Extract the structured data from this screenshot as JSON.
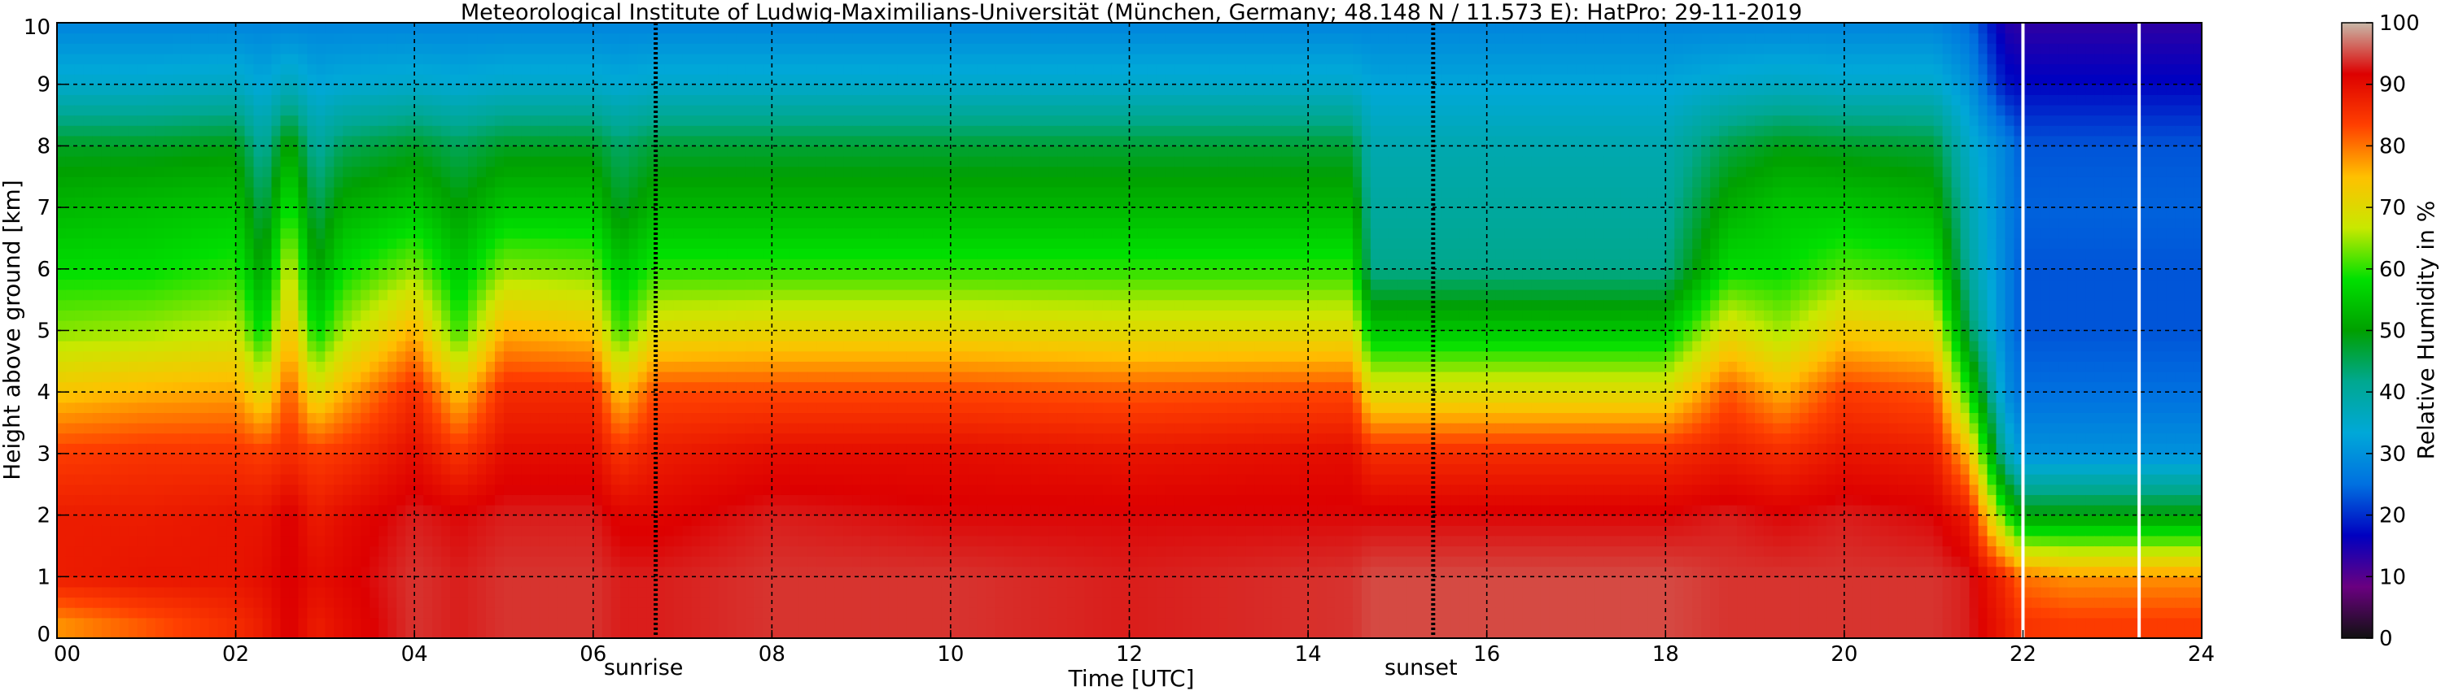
{
  "chart_data": {
    "type": "heatmap",
    "title": "Meteorological Institute of Ludwig-Maximilians-Universität (München, Germany; 48.148 N / 11.573 E):    HatPro: 29-11-2019",
    "xlabel": "Time [UTC]",
    "ylabel": "Height above ground [km]",
    "xlim": [
      0,
      24
    ],
    "ylim": [
      0,
      10
    ],
    "x_ticks": [
      "00",
      "02",
      "04",
      "06",
      "08",
      "10",
      "12",
      "14",
      "16",
      "18",
      "20",
      "22",
      "24"
    ],
    "y_ticks": [
      "0",
      "1",
      "2",
      "3",
      "4",
      "5",
      "6",
      "7",
      "8",
      "9",
      "10"
    ],
    "grid": true,
    "colorbar": {
      "label": "Relative Humidity in %",
      "range": [
        0,
        100
      ],
      "ticks": [
        "0",
        "10",
        "20",
        "30",
        "40",
        "50",
        "60",
        "70",
        "80",
        "90",
        "100"
      ],
      "colors": [
        "#111111",
        "#6a0080",
        "#0000c0",
        "#0070e0",
        "#00a8d8",
        "#00a890",
        "#00a000",
        "#00e000",
        "#c8e800",
        "#ffc000",
        "#ff4000",
        "#dd0000",
        "#c8b8a8"
      ]
    },
    "annotations": [
      {
        "text": "sunrise",
        "x": 6.7
      },
      {
        "text": "sunset",
        "x": 15.4
      }
    ],
    "rain_flags": [
      22.0,
      23.3
    ],
    "time_hours": [
      0,
      1,
      2,
      2.3,
      2.6,
      2.9,
      3.2,
      4.0,
      4.5,
      5.0,
      6.0,
      6.3,
      6.7,
      8,
      10,
      12,
      14.5,
      14.7,
      16,
      18,
      18.7,
      19.3,
      20,
      21,
      21.4,
      21.8,
      22,
      22.5,
      23,
      24
    ],
    "relative_humidity": {
      "0.25": [
        78,
        82,
        86,
        88,
        92,
        88,
        90,
        94,
        93,
        94,
        94,
        93,
        93,
        94,
        94,
        93,
        94,
        95,
        95,
        95,
        94,
        94,
        94,
        94,
        93,
        88,
        85,
        84,
        84,
        84
      ],
      "1": [
        88,
        89,
        89,
        90,
        92,
        90,
        91,
        94,
        93,
        94,
        94,
        93,
        93,
        94,
        94,
        93,
        94,
        95,
        95,
        95,
        94,
        94,
        94,
        94,
        93,
        86,
        80,
        78,
        78,
        78
      ],
      "2": [
        88,
        88,
        89,
        89,
        92,
        88,
        90,
        93,
        92,
        93,
        93,
        91,
        91,
        93,
        92,
        92,
        92,
        92,
        92,
        92,
        93,
        92,
        93,
        92,
        88,
        60,
        50,
        50,
        50,
        50
      ],
      "3": [
        84,
        85,
        85,
        84,
        86,
        84,
        85,
        90,
        85,
        90,
        90,
        85,
        88,
        90,
        90,
        89,
        90,
        86,
        86,
        86,
        88,
        86,
        89,
        88,
        75,
        38,
        30,
        30,
        30,
        30
      ],
      "4": [
        74,
        76,
        77,
        70,
        82,
        70,
        76,
        86,
        74,
        86,
        86,
        74,
        83,
        83,
        83,
        82,
        83,
        70,
        70,
        70,
        82,
        76,
        84,
        82,
        58,
        30,
        25,
        25,
        25,
        25
      ],
      "5": [
        64,
        65,
        67,
        57,
        75,
        57,
        65,
        76,
        60,
        76,
        74,
        60,
        70,
        71,
        71,
        70,
        70,
        55,
        55,
        55,
        70,
        65,
        73,
        71,
        45,
        28,
        23,
        23,
        23,
        23
      ],
      "6": [
        58,
        58,
        60,
        50,
        68,
        50,
        58,
        64,
        55,
        64,
        63,
        55,
        60,
        60,
        60,
        60,
        60,
        42,
        42,
        42,
        58,
        58,
        62,
        60,
        40,
        28,
        23,
        23,
        23,
        23
      ],
      "7": [
        53,
        54,
        55,
        45,
        60,
        45,
        52,
        55,
        50,
        55,
        55,
        48,
        53,
        53,
        53,
        53,
        53,
        40,
        40,
        40,
        52,
        55,
        55,
        53,
        38,
        28,
        24,
        24,
        24,
        24
      ],
      "8": [
        48,
        48,
        49,
        40,
        52,
        40,
        45,
        48,
        45,
        48,
        48,
        44,
        47,
        47,
        47,
        47,
        47,
        38,
        38,
        38,
        46,
        49,
        48,
        47,
        35,
        28,
        23,
        23,
        23,
        23
      ],
      "9": [
        35,
        35,
        36,
        33,
        37,
        33,
        34,
        35,
        34,
        35,
        35,
        34,
        35,
        35,
        35,
        35,
        35,
        33,
        33,
        33,
        35,
        36,
        35,
        35,
        30,
        18,
        17,
        17,
        17,
        17
      ],
      "10": [
        28,
        28,
        28,
        28,
        28,
        28,
        28,
        28,
        28,
        28,
        28,
        28,
        28,
        28,
        28,
        28,
        28,
        28,
        28,
        28,
        28,
        28,
        28,
        28,
        25,
        14,
        13,
        13,
        13,
        13
      ]
    }
  }
}
